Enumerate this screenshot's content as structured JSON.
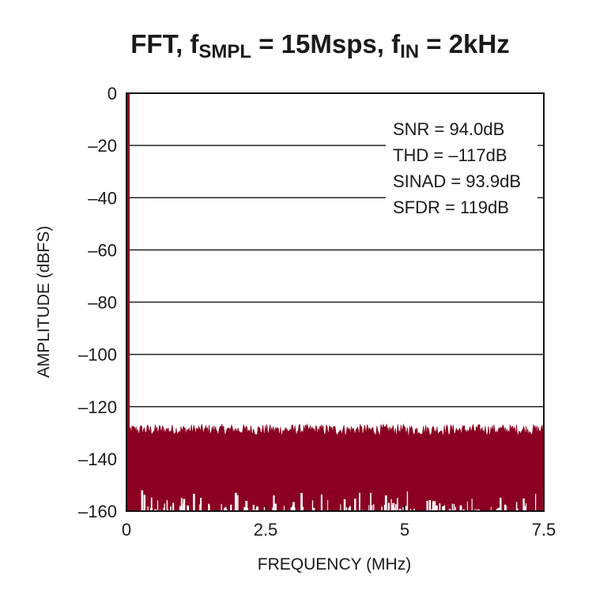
{
  "chart_data": {
    "type": "line",
    "title": {
      "parts": [
        {
          "text": "FFT, f",
          "sub": false
        },
        {
          "text": "SMPL",
          "sub": true
        },
        {
          "text": " = 15Msps, f",
          "sub": false
        },
        {
          "text": "IN",
          "sub": true
        },
        {
          "text": " = 2kHz",
          "sub": false
        }
      ]
    },
    "xlabel": "FREQUENCY (MHz)",
    "ylabel": "AMPLITUDE (dBFS)",
    "xlim": [
      0,
      7.5
    ],
    "ylim": [
      -160,
      0
    ],
    "x_ticks": [
      0,
      2.5,
      5,
      7.5
    ],
    "x_tick_labels": [
      "0",
      "2.5",
      "5",
      "7.5"
    ],
    "y_ticks": [
      0,
      -20,
      -40,
      -60,
      -80,
      -100,
      -120,
      -140,
      -160
    ],
    "y_tick_labels": [
      "0",
      "–20",
      "–40",
      "–60",
      "–80",
      "–100",
      "–120",
      "–140",
      "–160"
    ],
    "grid": {
      "horizontal": true,
      "vertical": false
    },
    "annotations": [
      "SNR = 94.0dB",
      "THD = –117dB",
      "SINAD = 93.9dB",
      "SFDR = 119dB"
    ],
    "annotation_placement": "top-right",
    "series": [
      {
        "color": "#8b0022",
        "fundamental": {
          "x": 0.002,
          "y": 0
        },
        "noise_floor_top": -129,
        "noise_floor_top_range": [
          -126,
          -131
        ],
        "noise_floor_bottom": -160
      }
    ]
  }
}
